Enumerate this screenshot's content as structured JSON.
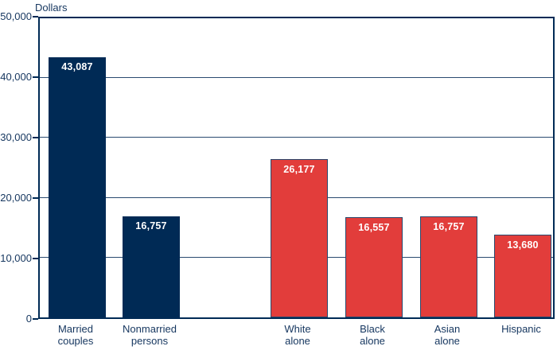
{
  "title": "Dollars",
  "colors": {
    "navy_bar": "#002a55",
    "red_bar": "#e23d3b",
    "red_bar_border": "#29486d",
    "axis_frame": "#002a55",
    "gridline": "#2a4a70",
    "text": "#15365f",
    "bar_value_text": "#ffffff",
    "background": "#ffffff"
  },
  "chart_data": {
    "type": "bar",
    "title": "Dollars",
    "xlabel": "",
    "ylabel": "Dollars",
    "ylim": [
      0,
      50000
    ],
    "yticks": [
      0,
      10000,
      20000,
      30000,
      40000,
      50000
    ],
    "ytick_labels": [
      "0",
      "10,000",
      "20,000",
      "30,000",
      "40,000",
      "50,000"
    ],
    "grid": true,
    "legend": "none",
    "bars": [
      {
        "category": "Married couples",
        "category_lines": [
          "Married",
          "couples"
        ],
        "value": 43087,
        "value_label": "43,087",
        "color": "navy"
      },
      {
        "category": "Nonmarried persons",
        "category_lines": [
          "Nonmarried",
          "persons"
        ],
        "value": 16757,
        "value_label": "16,757",
        "color": "navy"
      },
      {
        "category": "White alone",
        "category_lines": [
          "White",
          "alone"
        ],
        "value": 26177,
        "value_label": "26,177",
        "color": "red"
      },
      {
        "category": "Black alone",
        "category_lines": [
          "Black",
          "alone"
        ],
        "value": 16557,
        "value_label": "16,557",
        "color": "red"
      },
      {
        "category": "Asian alone",
        "category_lines": [
          "Asian",
          "alone"
        ],
        "value": 16757,
        "value_label": "16,757",
        "color": "red"
      },
      {
        "category": "Hispanic",
        "category_lines": [
          "Hispanic"
        ],
        "value": 13680,
        "value_label": "13,680",
        "color": "red"
      }
    ]
  }
}
